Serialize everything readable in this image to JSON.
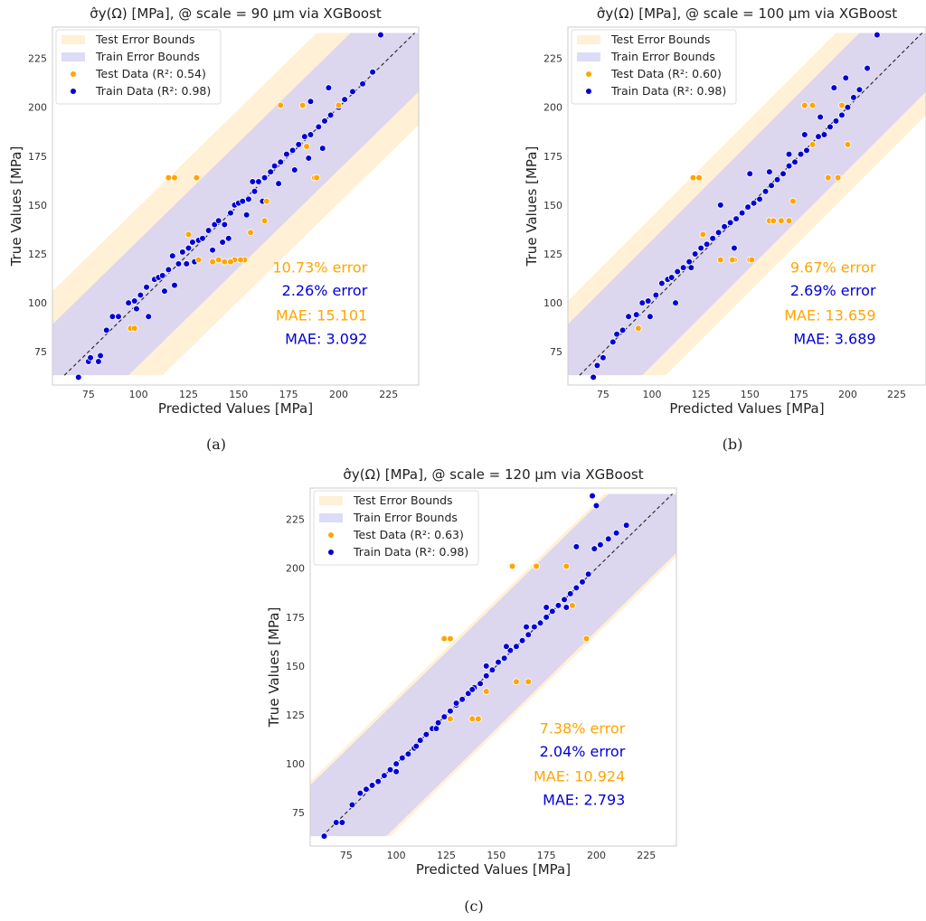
{
  "captions": [
    "(a)",
    "(b)",
    "(c)"
  ],
  "colors": {
    "test": "#ffa500",
    "train": "#0000d6",
    "test_band": "#fff0d6",
    "train_band": "#dcd6ee",
    "diagonal": "#222222"
  },
  "chart_data": [
    {
      "type": "scatter",
      "title": "σ̂y(Ω) [MPa], @ scale = 90 µm via XGBoost",
      "xlabel": "Predicted Values [MPa]",
      "ylabel": "True Values [MPa]",
      "xlim": [
        57,
        240
      ],
      "ylim": [
        58,
        241
      ],
      "xticks": [
        75,
        100,
        125,
        150,
        175,
        200,
        225
      ],
      "yticks": [
        75,
        100,
        125,
        150,
        175,
        200,
        225
      ],
      "grid": false,
      "legend_position": "top-left",
      "legend": [
        "Test Error Bounds",
        "Train Error Bounds",
        "Test Data (R²: 0.54)",
        "Train Data (R²: 0.98)"
      ],
      "test_error_text": "10.73% error",
      "train_error_text": "2.26% error",
      "test_mae_text": "MAE: 15.101",
      "train_mae_text": "MAE: 3.092",
      "test_band_halfwidth": 49,
      "train_band_halfwidth": 32,
      "band_range": [
        63,
        238
      ],
      "series": [
        {
          "name": "Test Data (R²: 0.54)",
          "x": [
            115,
            118,
            129,
            171,
            182,
            188,
            189,
            200,
            130,
            140,
            148,
            153,
            156,
            163,
            164,
            96,
            98,
            125,
            137,
            143,
            146,
            151,
            184
          ],
          "y": [
            164,
            164,
            164,
            201,
            201,
            164,
            164,
            201,
            122,
            122,
            122,
            122,
            136,
            142,
            152,
            87,
            87,
            135,
            121,
            121,
            121,
            122,
            180
          ]
        },
        {
          "name": "Train Data (R²: 0.98)",
          "x": [
            70,
            75,
            76,
            80,
            81,
            84,
            87,
            90,
            95,
            98,
            101,
            104,
            108,
            110,
            112,
            115,
            117,
            120,
            122,
            125,
            127,
            130,
            132,
            135,
            138,
            140,
            143,
            146,
            148,
            150,
            152,
            155,
            158,
            160,
            163,
            166,
            168,
            171,
            174,
            177,
            180,
            183,
            186,
            190,
            193,
            196,
            200,
            203,
            207,
            212,
            217,
            221,
            105,
            118,
            128,
            137,
            145,
            154,
            162,
            170,
            178,
            185,
            192,
            157,
            142,
            124,
            113,
            99,
            186,
            195
          ],
          "y": [
            62,
            70,
            72,
            70,
            73,
            86,
            93,
            93,
            100,
            101,
            104,
            108,
            112,
            113,
            114,
            117,
            124,
            120,
            126,
            128,
            131,
            132,
            133,
            137,
            140,
            142,
            140,
            146,
            150,
            151,
            152,
            153,
            157,
            162,
            164,
            167,
            170,
            172,
            176,
            178,
            181,
            185,
            186,
            190,
            193,
            196,
            200,
            204,
            208,
            212,
            218,
            237,
            93,
            109,
            121,
            127,
            133,
            145,
            152,
            161,
            168,
            174,
            179,
            162,
            131,
            120,
            106,
            97,
            203,
            210
          ]
        }
      ]
    },
    {
      "type": "scatter",
      "title": "σ̂y(Ω) [MPa], @ scale = 100 µm via XGBoost",
      "xlabel": "Predicted Values [MPa]",
      "ylabel": "True Values [MPa]",
      "xlim": [
        57,
        240
      ],
      "ylim": [
        58,
        241
      ],
      "xticks": [
        75,
        100,
        125,
        150,
        175,
        200,
        225
      ],
      "yticks": [
        75,
        100,
        125,
        150,
        175,
        200,
        225
      ],
      "grid": false,
      "legend_position": "top-left",
      "legend": [
        "Test Error Bounds",
        "Train Error Bounds",
        "Test Data (R²: 0.60)",
        "Train Data (R²: 0.98)"
      ],
      "test_error_text": "9.67% error",
      "train_error_text": "2.69% error",
      "test_mae_text": "MAE: 13.659",
      "train_mae_text": "MAE: 3.689",
      "test_band_halfwidth": 44,
      "train_band_halfwidth": 32,
      "band_range": [
        63,
        238
      ],
      "series": [
        {
          "name": "Test Data (R²: 0.60)",
          "x": [
            121,
            124,
            178,
            182,
            197,
            190,
            195,
            200,
            135,
            142,
            150,
            160,
            166,
            170,
            172,
            93,
            126,
            141,
            151,
            162,
            182
          ],
          "y": [
            164,
            164,
            201,
            201,
            201,
            164,
            164,
            181,
            122,
            122,
            122,
            142,
            142,
            142,
            152,
            87,
            135,
            122,
            122,
            142,
            181
          ]
        },
        {
          "name": "Train Data (R²: 0.98)",
          "x": [
            70,
            72,
            75,
            80,
            82,
            85,
            88,
            92,
            95,
            98,
            102,
            105,
            108,
            110,
            113,
            116,
            119,
            122,
            125,
            128,
            131,
            134,
            137,
            140,
            143,
            146,
            149,
            152,
            155,
            158,
            161,
            164,
            167,
            170,
            173,
            176,
            179,
            182,
            185,
            188,
            191,
            194,
            197,
            200,
            203,
            206,
            210,
            215,
            150,
            160,
            170,
            178,
            186,
            193,
            199,
            135,
            142,
            120,
            99,
            112
          ],
          "y": [
            62,
            68,
            72,
            80,
            84,
            86,
            93,
            94,
            100,
            101,
            104,
            110,
            112,
            113,
            116,
            118,
            121,
            125,
            128,
            130,
            133,
            136,
            139,
            141,
            143,
            146,
            149,
            151,
            153,
            157,
            160,
            163,
            166,
            170,
            172,
            176,
            178,
            181,
            185,
            186,
            190,
            193,
            196,
            200,
            205,
            209,
            220,
            237,
            166,
            167,
            176,
            186,
            195,
            210,
            215,
            150,
            128,
            118,
            93,
            100
          ]
        }
      ]
    },
    {
      "type": "scatter",
      "title": "σ̂y(Ω) [MPa], @ scale = 120 µm via XGBoost",
      "xlabel": "Predicted Values [MPa]",
      "ylabel": "True Values [MPa]",
      "xlim": [
        57,
        240
      ],
      "ylim": [
        58,
        241
      ],
      "xticks": [
        75,
        100,
        125,
        150,
        175,
        200,
        225
      ],
      "yticks": [
        75,
        100,
        125,
        150,
        175,
        200,
        225
      ],
      "grid": false,
      "legend_position": "top-left",
      "legend": [
        "Test Error Bounds",
        "Train Error Bounds",
        "Test Data (R²: 0.63)",
        "Train Data (R²: 0.98)"
      ],
      "test_error_text": "7.38% error",
      "train_error_text": "2.04% error",
      "test_mae_text": "MAE: 10.924",
      "train_mae_text": "MAE: 2.793",
      "test_band_halfwidth": 34,
      "train_band_halfwidth": 32,
      "band_range": [
        63,
        238
      ],
      "series": [
        {
          "name": "Test Data (R²: 0.63)",
          "x": [
            124,
            127,
            158,
            170,
            185,
            195,
            138,
            141,
            145,
            160,
            166,
            127,
            188
          ],
          "y": [
            164,
            164,
            201,
            201,
            201,
            164,
            123,
            123,
            137,
            142,
            142,
            123,
            181
          ]
        },
        {
          "name": "Train Data (R²: 0.98)",
          "x": [
            64,
            70,
            73,
            78,
            82,
            85,
            88,
            91,
            94,
            97,
            100,
            103,
            106,
            109,
            112,
            115,
            118,
            121,
            124,
            127,
            130,
            133,
            136,
            139,
            142,
            145,
            148,
            151,
            154,
            157,
            160,
            163,
            166,
            169,
            172,
            175,
            178,
            181,
            184,
            187,
            190,
            193,
            196,
            199,
            202,
            206,
            210,
            215,
            198,
            200,
            190,
            185,
            175,
            165,
            155,
            145,
            138,
            130,
            120,
            110,
            100
          ],
          "y": [
            63,
            70,
            70,
            79,
            85,
            87,
            89,
            91,
            94,
            97,
            100,
            103,
            105,
            108,
            112,
            115,
            118,
            121,
            124,
            127,
            130,
            133,
            136,
            139,
            141,
            145,
            148,
            152,
            154,
            158,
            160,
            163,
            166,
            170,
            172,
            175,
            178,
            181,
            184,
            187,
            190,
            193,
            197,
            210,
            212,
            215,
            218,
            222,
            237,
            232,
            211,
            180,
            180,
            170,
            160,
            150,
            138,
            131,
            118,
            109,
            96
          ]
        }
      ]
    }
  ]
}
